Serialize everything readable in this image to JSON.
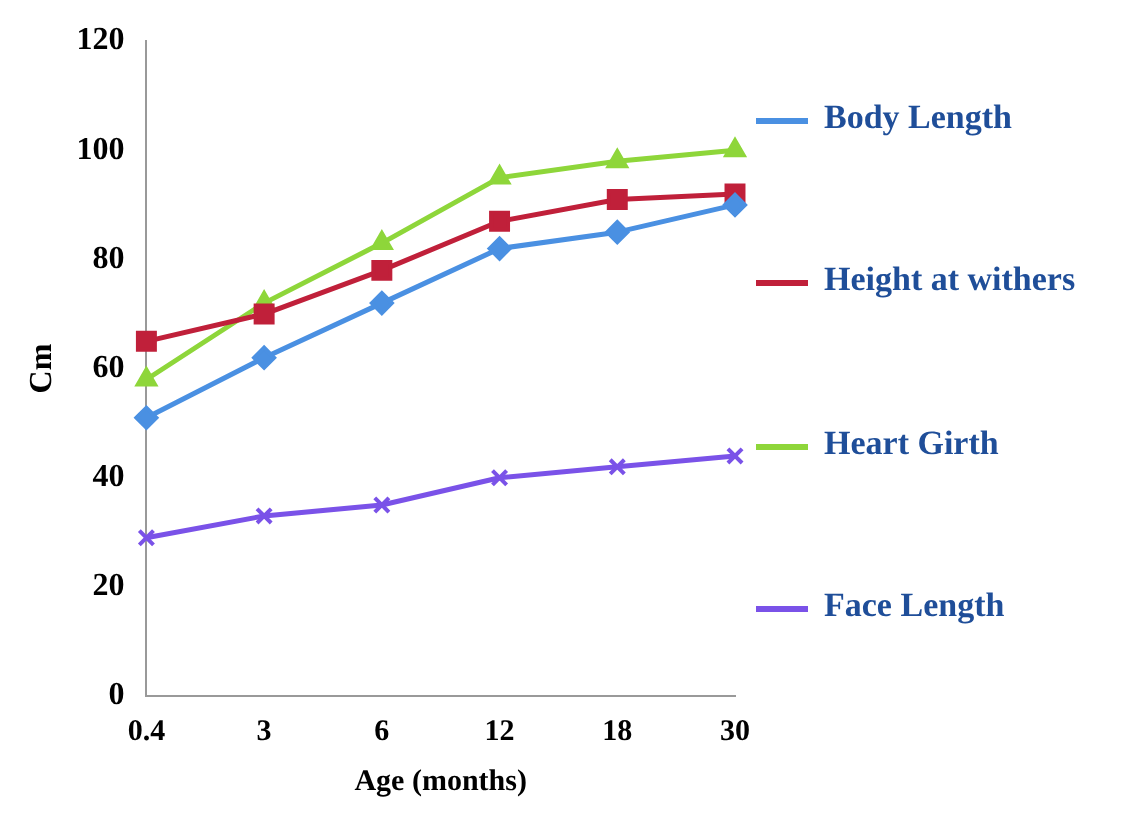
{
  "chart_data": {
    "type": "line",
    "xlabel": "Age (months)",
    "ylabel": "Cm",
    "categories": [
      "0.4",
      "3",
      "6",
      "12",
      "18",
      "30"
    ],
    "ylim": [
      0,
      120
    ],
    "yticks": [
      0,
      20,
      40,
      60,
      80,
      100,
      120
    ],
    "grid": false,
    "legend": "right",
    "line_style": "solid",
    "series": [
      {
        "name": "Body Length",
        "color": "#4a90e2",
        "marker": "diamond",
        "values": [
          51,
          62,
          72,
          82,
          85,
          90
        ]
      },
      {
        "name": "Height at withers",
        "color": "#c0203a",
        "marker": "square",
        "values": [
          65,
          70,
          78,
          87,
          91,
          92
        ]
      },
      {
        "name": "Heart Girth",
        "color": "#8ed63a",
        "marker": "triangle",
        "values": [
          58,
          72,
          83,
          95,
          98,
          100
        ]
      },
      {
        "name": "Face Length",
        "color": "#7a52e8",
        "marker": "cross",
        "values": [
          29,
          33,
          35,
          40,
          42,
          44
        ]
      }
    ]
  }
}
